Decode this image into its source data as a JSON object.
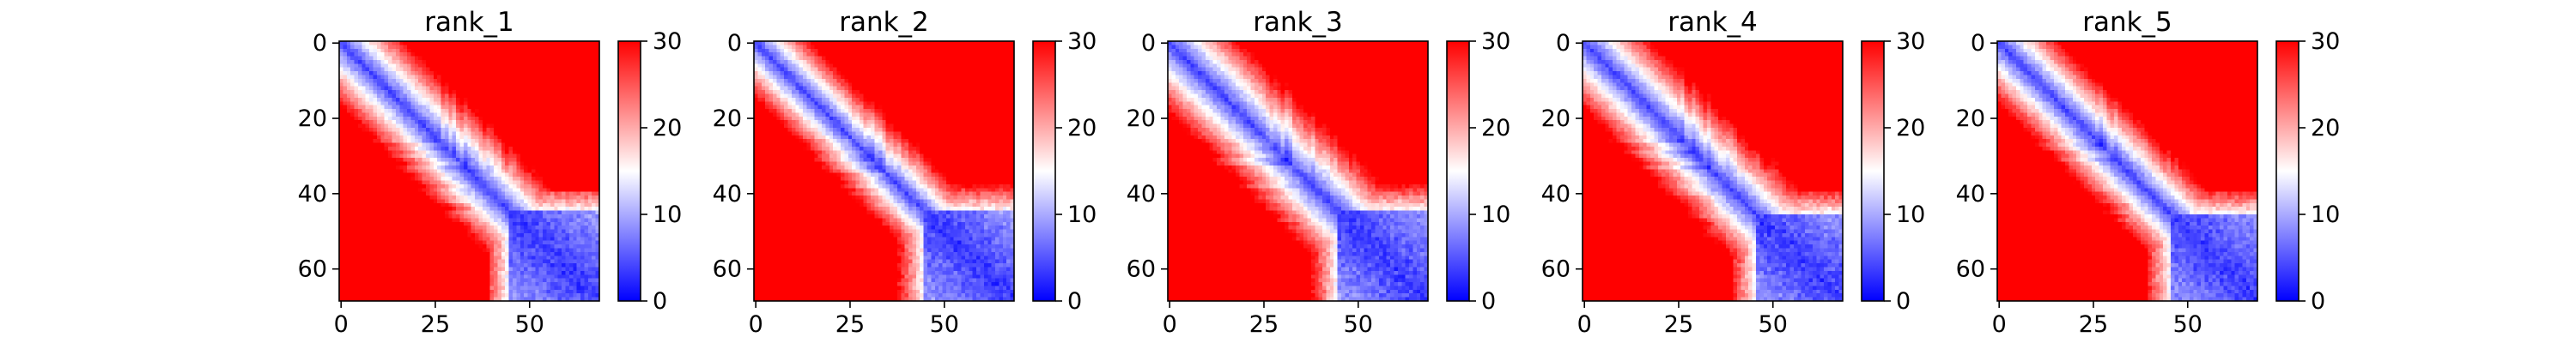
{
  "chart_data": [
    {
      "type": "heatmap",
      "title": "rank_1",
      "matrix_size": 69,
      "x_ticks": [
        0,
        25,
        50
      ],
      "y_ticks": [
        0,
        20,
        40,
        60
      ],
      "colorbar": {
        "range": [
          0,
          30
        ],
        "ticks": [
          0,
          10,
          20,
          30
        ]
      },
      "colormap": [
        "#0000ff",
        "#ffffff",
        "#ff0000"
      ],
      "pattern": {
        "domain_start": 45,
        "domain_near": 40,
        "spread": 1.0
      }
    },
    {
      "type": "heatmap",
      "title": "rank_2",
      "matrix_size": 69,
      "x_ticks": [
        0,
        25,
        50
      ],
      "y_ticks": [
        0,
        20,
        40,
        60
      ],
      "colorbar": {
        "range": [
          0,
          30
        ],
        "ticks": [
          0,
          10,
          20,
          30
        ]
      },
      "colormap": [
        "#0000ff",
        "#ffffff",
        "#ff0000"
      ],
      "pattern": {
        "domain_start": 45,
        "domain_near": 38,
        "spread": 1.15
      }
    },
    {
      "type": "heatmap",
      "title": "rank_3",
      "matrix_size": 69,
      "x_ticks": [
        0,
        25,
        50
      ],
      "y_ticks": [
        0,
        20,
        40,
        60
      ],
      "colorbar": {
        "range": [
          0,
          30
        ],
        "ticks": [
          0,
          10,
          20,
          30
        ]
      },
      "colormap": [
        "#0000ff",
        "#ffffff",
        "#ff0000"
      ],
      "pattern": {
        "domain_start": 45,
        "domain_near": 38,
        "spread": 0.9
      }
    },
    {
      "type": "heatmap",
      "title": "rank_4",
      "matrix_size": 69,
      "x_ticks": [
        0,
        25,
        50
      ],
      "y_ticks": [
        0,
        20,
        40,
        60
      ],
      "colorbar": {
        "range": [
          0,
          30
        ],
        "ticks": [
          0,
          10,
          20,
          30
        ]
      },
      "colormap": [
        "#0000ff",
        "#ffffff",
        "#ff0000"
      ],
      "pattern": {
        "domain_start": 46,
        "domain_near": 40,
        "spread": 0.95
      }
    },
    {
      "type": "heatmap",
      "title": "rank_5",
      "matrix_size": 69,
      "x_ticks": [
        0,
        25,
        50
      ],
      "y_ticks": [
        0,
        20,
        40,
        60
      ],
      "colorbar": {
        "range": [
          0,
          30
        ],
        "ticks": [
          0,
          10,
          20,
          30
        ]
      },
      "colormap": [
        "#0000ff",
        "#ffffff",
        "#ff0000"
      ],
      "pattern": {
        "domain_start": 46,
        "domain_near": 40,
        "spread": 1.05
      }
    }
  ]
}
